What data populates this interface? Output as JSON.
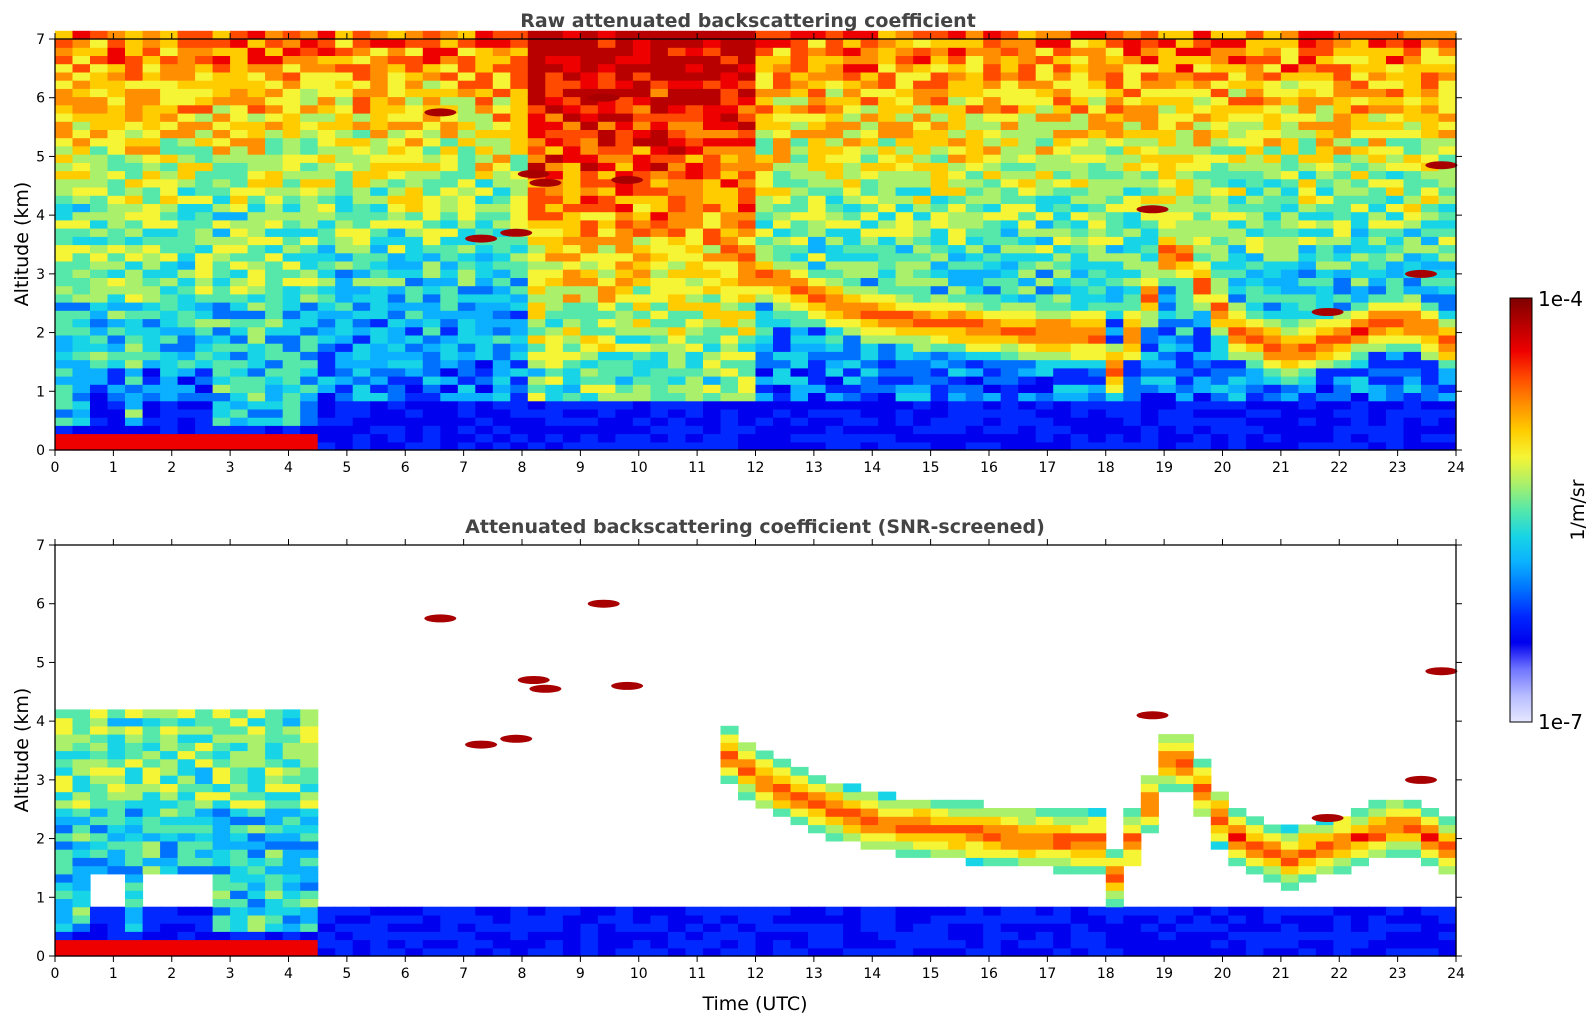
{
  "chart_data": [
    {
      "type": "heatmap",
      "title": "Raw attenuated backscattering coefficient",
      "xlabel": "",
      "ylabel": "Altitude (km)",
      "xlim": [
        0,
        24
      ],
      "ylim": [
        0,
        7
      ],
      "xticks": [
        0,
        1,
        2,
        3,
        4,
        5,
        6,
        7,
        8,
        9,
        10,
        11,
        12,
        13,
        14,
        15,
        16,
        17,
        18,
        19,
        20,
        21,
        22,
        23,
        24
      ],
      "yticks": [
        0,
        1,
        2,
        3,
        4,
        5,
        6,
        7
      ],
      "cloud_layers": [
        {
          "x": [
            11.3,
            12,
            13,
            14,
            15,
            16,
            17,
            18
          ],
          "y": [
            3.4,
            2.9,
            2.5,
            2.2,
            2.1,
            2.0,
            1.9,
            1.9
          ]
        },
        {
          "x": [
            18,
            18.5,
            19,
            20,
            21,
            22,
            23,
            23.8
          ],
          "y": [
            1.3,
            2.3,
            3.5,
            2.0,
            1.6,
            1.9,
            2.2,
            1.7
          ]
        }
      ],
      "elevated_features": [
        {
          "x": 8.4,
          "y": 4.55
        },
        {
          "x": 8.2,
          "y": 4.7
        },
        {
          "x": 9.4,
          "y": 6.0
        },
        {
          "x": 9.8,
          "y": 4.6
        },
        {
          "x": 6.6,
          "y": 5.75
        },
        {
          "x": 7.3,
          "y": 3.6
        },
        {
          "x": 7.9,
          "y": 3.7
        },
        {
          "x": 18.8,
          "y": 4.1
        },
        {
          "x": 21.8,
          "y": 2.35
        },
        {
          "x": 23.4,
          "y": 3.0
        },
        {
          "x": 23.75,
          "y": 4.85
        }
      ]
    },
    {
      "type": "heatmap",
      "title": "Attenuated backscattering coefficient (SNR-screened)",
      "xlabel": "Time (UTC)",
      "ylabel": "Altitude (km)",
      "xlim": [
        0,
        24
      ],
      "ylim": [
        0,
        7
      ],
      "xticks": [
        0,
        1,
        2,
        3,
        4,
        5,
        6,
        7,
        8,
        9,
        10,
        11,
        12,
        13,
        14,
        15,
        16,
        17,
        18,
        19,
        20,
        21,
        22,
        23,
        24
      ],
      "yticks": [
        0,
        1,
        2,
        3,
        4,
        5,
        6,
        7
      ],
      "cloud_layers": [
        {
          "x": [
            11.3,
            12,
            13,
            14,
            15,
            16,
            17,
            18
          ],
          "y": [
            3.4,
            2.9,
            2.5,
            2.2,
            2.1,
            2.0,
            1.9,
            1.9
          ]
        },
        {
          "x": [
            18,
            18.5,
            19,
            20,
            21,
            22,
            23,
            23.8
          ],
          "y": [
            1.3,
            2.3,
            3.5,
            2.0,
            1.6,
            1.9,
            2.2,
            1.7
          ]
        }
      ],
      "elevated_features": [
        {
          "x": 8.4,
          "y": 4.55
        },
        {
          "x": 8.2,
          "y": 4.7
        },
        {
          "x": 9.4,
          "y": 6.0
        },
        {
          "x": 9.8,
          "y": 4.6
        },
        {
          "x": 6.6,
          "y": 5.75
        },
        {
          "x": 7.3,
          "y": 3.6
        },
        {
          "x": 7.9,
          "y": 3.7
        },
        {
          "x": 18.8,
          "y": 4.1
        },
        {
          "x": 21.8,
          "y": 2.35
        },
        {
          "x": 23.4,
          "y": 3.0
        },
        {
          "x": 23.75,
          "y": 4.85
        }
      ]
    }
  ],
  "colorbar": {
    "label": "1/m/sr",
    "max_label": "1e-4",
    "min_label": "1e-7",
    "colors": [
      "#7f0000",
      "#b80000",
      "#ee0000",
      "#ff4a00",
      "#ff8f00",
      "#ffcc00",
      "#f5f535",
      "#aaf06a",
      "#55e8aa",
      "#17d4e6",
      "#0bb0ff",
      "#0070ff",
      "#0028ff",
      "#0000ee",
      "#6f74ff",
      "#b8bcff",
      "#e6e8ff"
    ]
  }
}
